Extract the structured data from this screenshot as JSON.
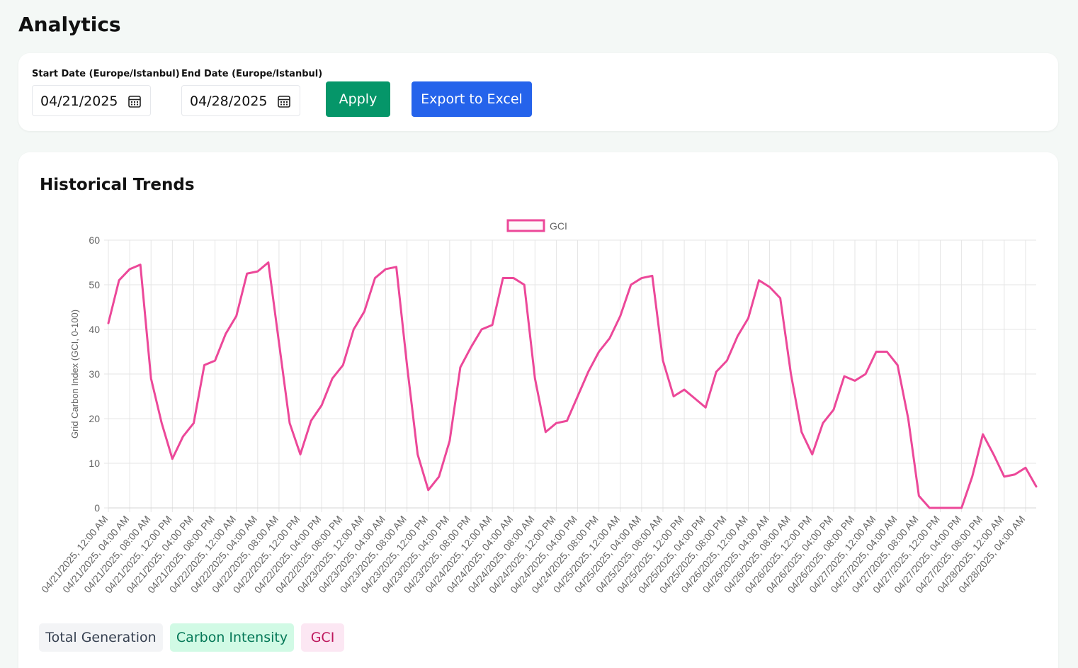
{
  "header": {
    "title": "Analytics"
  },
  "filters": {
    "start_date": {
      "label": "Start Date (Europe/Istanbul)",
      "value": "04/21/2025"
    },
    "end_date": {
      "label": "End Date (Europe/Istanbul)",
      "value": "04/28/2025"
    },
    "apply": "Apply",
    "export": "Export to Excel"
  },
  "section_title": "Historical Trends",
  "chart_data": {
    "type": "line",
    "y_label": "Grid Carbon Index (GCI, 0-100)",
    "ylim": [
      0,
      60
    ],
    "yticks": [
      0,
      10,
      20,
      30,
      40,
      50,
      60
    ],
    "grid": true,
    "legend": "top",
    "categories": [
      "04/21/2025, 12:00 AM",
      null,
      "04/21/2025, 04:00 AM",
      null,
      "04/21/2025, 08:00 AM",
      null,
      "04/21/2025, 12:00 PM",
      null,
      "04/21/2025, 04:00 PM",
      null,
      "04/21/2025, 08:00 PM",
      null,
      "04/22/2025, 12:00 AM",
      null,
      "04/22/2025, 04:00 AM",
      null,
      "04/22/2025, 08:00 AM",
      null,
      "04/22/2025, 12:00 PM",
      null,
      "04/22/2025, 04:00 PM",
      null,
      "04/22/2025, 08:00 PM",
      null,
      "04/23/2025, 12:00 AM",
      null,
      "04/23/2025, 04:00 AM",
      null,
      "04/23/2025, 08:00 AM",
      null,
      "04/23/2025, 12:00 PM",
      null,
      "04/23/2025, 04:00 PM",
      null,
      "04/23/2025, 08:00 PM",
      null,
      "04/24/2025, 12:00 AM",
      null,
      "04/24/2025, 04:00 AM",
      null,
      "04/24/2025, 08:00 AM",
      null,
      "04/24/2025, 12:00 PM",
      null,
      "04/24/2025, 04:00 PM",
      null,
      "04/24/2025, 08:00 PM",
      null,
      "04/25/2025, 12:00 AM",
      null,
      "04/25/2025, 04:00 AM",
      null,
      "04/25/2025, 08:00 AM",
      null,
      "04/25/2025, 12:00 PM",
      null,
      "04/25/2025, 04:00 PM",
      null,
      "04/25/2025, 08:00 PM",
      null,
      "04/26/2025, 12:00 AM",
      null,
      "04/26/2025, 04:00 AM",
      null,
      "04/26/2025, 08:00 AM",
      null,
      "04/26/2025, 12:00 PM",
      null,
      "04/26/2025, 04:00 PM",
      null,
      "04/26/2025, 08:00 PM",
      null,
      "04/27/2025, 12:00 AM",
      null,
      "04/27/2025, 04:00 AM",
      null,
      "04/27/2025, 08:00 AM",
      null,
      "04/27/2025, 12:00 PM",
      null,
      "04/27/2025, 04:00 PM",
      null,
      "04/27/2025, 08:00 PM",
      null,
      "04/28/2025, 12:00 AM",
      null,
      "04/28/2025, 04:00 AM",
      null
    ],
    "series": [
      {
        "name": "GCI",
        "color": "#ec4899",
        "values": [
          41.4,
          51,
          53.5,
          54.5,
          29,
          19,
          11,
          16,
          19,
          32,
          33,
          39,
          43,
          52.5,
          53,
          55,
          37,
          19,
          12,
          19.5,
          23,
          29,
          32,
          40,
          44,
          51.5,
          53.5,
          54,
          32,
          12,
          4,
          7,
          15,
          31.5,
          36,
          40,
          41,
          51.5,
          51.5,
          50,
          29,
          17,
          19,
          19.5,
          25,
          30.5,
          35,
          38,
          43,
          50,
          51.5,
          52,
          33,
          25,
          26.5,
          24.5,
          22.5,
          30.5,
          33,
          38.5,
          42.5,
          51,
          49.5,
          47,
          30,
          17,
          12,
          19,
          22,
          29.5,
          28.5,
          30,
          35,
          35,
          32,
          20,
          2.7,
          0,
          0,
          0,
          0,
          7,
          16.5,
          12,
          7,
          7.5,
          9,
          4.8
        ]
      }
    ]
  },
  "tabs": [
    "Total Generation",
    "Carbon Intensity",
    "GCI"
  ]
}
